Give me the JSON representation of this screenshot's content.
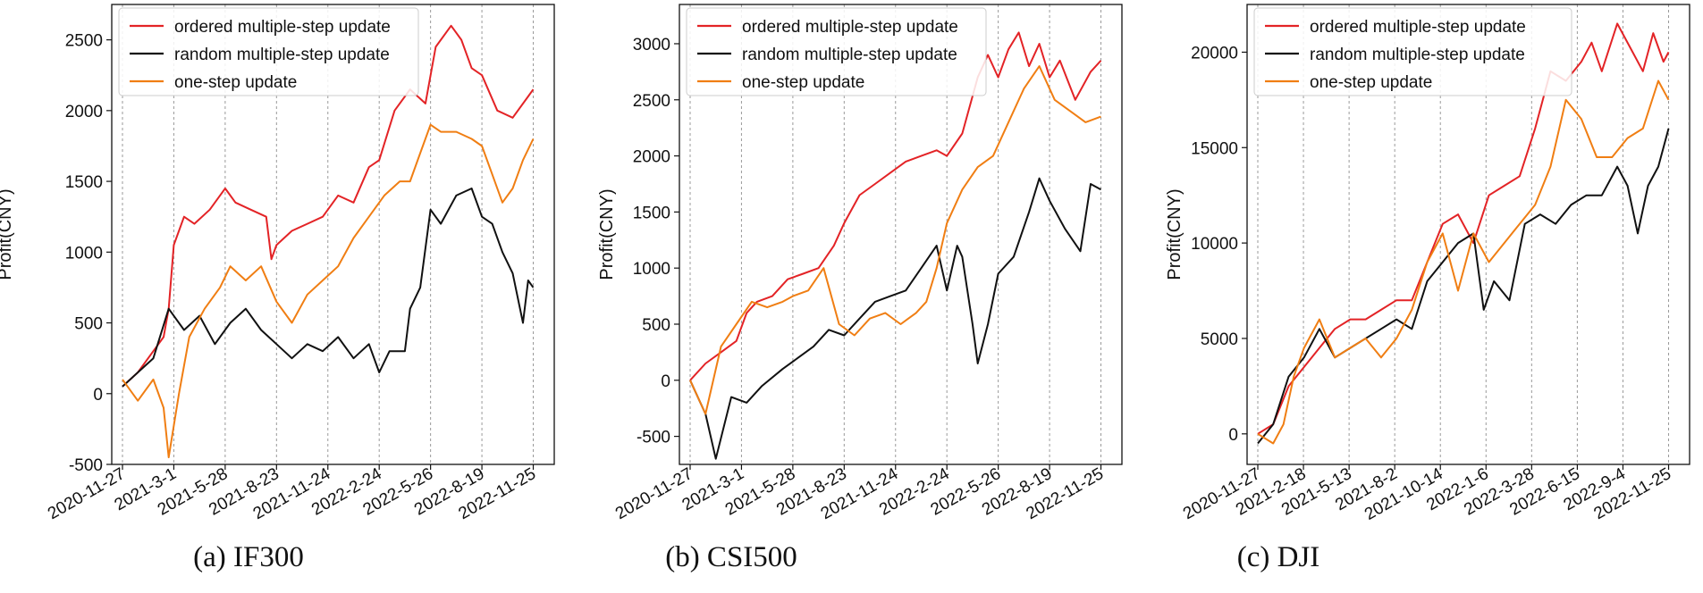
{
  "colors": {
    "ordered": "#e32326",
    "random": "#111111",
    "onestep": "#f07e13",
    "grid": "#9a9a9a"
  },
  "chart_data": [
    {
      "type": "line",
      "caption": "(a) IF300",
      "ylabel": "Profit(CNY)",
      "ylim": [
        -500,
        2750
      ],
      "yticks": [
        -500,
        0,
        500,
        1000,
        1500,
        2000,
        2500
      ],
      "xlim": [
        0,
        8.2
      ],
      "xtick_labels": [
        "2020-11-27",
        "2021-3-1",
        "2021-5-28",
        "2021-8-23",
        "2021-11-24",
        "2022-2-24",
        "2022-5-26",
        "2022-8-19",
        "2022-11-25"
      ],
      "grid": "vertical dashed at x ticks",
      "legend_position": "upper-left",
      "series": [
        {
          "name": "ordered multiple-step update",
          "color_key": "ordered",
          "x": [
            0,
            0.3,
            0.6,
            0.8,
            0.9,
            1.0,
            1.2,
            1.4,
            1.7,
            1.9,
            2.0,
            2.2,
            2.5,
            2.8,
            2.9,
            3.0,
            3.3,
            3.6,
            3.9,
            4.2,
            4.5,
            4.8,
            5.0,
            5.3,
            5.6,
            5.9,
            6.1,
            6.4,
            6.6,
            6.8,
            7.0,
            7.3,
            7.6,
            7.9,
            8.0
          ],
          "y": [
            50,
            150,
            300,
            400,
            600,
            1050,
            1250,
            1200,
            1300,
            1400,
            1450,
            1350,
            1300,
            1250,
            950,
            1050,
            1150,
            1200,
            1250,
            1400,
            1350,
            1600,
            1650,
            2000,
            2150,
            2050,
            2450,
            2600,
            2500,
            2300,
            2250,
            2000,
            1950,
            2100,
            2150
          ]
        },
        {
          "name": "random multiple-step update",
          "color_key": "random",
          "x": [
            0,
            0.3,
            0.6,
            0.9,
            1.2,
            1.5,
            1.8,
            2.1,
            2.4,
            2.7,
            3.0,
            3.3,
            3.6,
            3.9,
            4.2,
            4.5,
            4.8,
            5.0,
            5.2,
            5.5,
            5.6,
            5.8,
            6.0,
            6.2,
            6.5,
            6.8,
            7.0,
            7.2,
            7.4,
            7.6,
            7.8,
            7.9,
            8.0
          ],
          "y": [
            50,
            150,
            250,
            600,
            450,
            550,
            350,
            500,
            600,
            450,
            350,
            250,
            350,
            300,
            400,
            250,
            350,
            150,
            300,
            300,
            600,
            750,
            1300,
            1200,
            1400,
            1450,
            1250,
            1200,
            1000,
            850,
            500,
            800,
            750
          ]
        },
        {
          "name": "one-step update",
          "color_key": "onestep",
          "x": [
            0,
            0.3,
            0.6,
            0.8,
            0.9,
            1.1,
            1.3,
            1.6,
            1.9,
            2.1,
            2.4,
            2.7,
            3.0,
            3.3,
            3.6,
            3.9,
            4.2,
            4.5,
            4.8,
            5.1,
            5.4,
            5.6,
            5.8,
            6.0,
            6.2,
            6.5,
            6.8,
            7.0,
            7.2,
            7.4,
            7.6,
            7.8,
            8.0
          ],
          "y": [
            100,
            -50,
            100,
            -100,
            -450,
            0,
            400,
            600,
            750,
            900,
            800,
            900,
            650,
            500,
            700,
            800,
            900,
            1100,
            1250,
            1400,
            1500,
            1500,
            1700,
            1900,
            1850,
            1850,
            1800,
            1750,
            1550,
            1350,
            1450,
            1650,
            1800
          ]
        }
      ]
    },
    {
      "type": "line",
      "caption": "(b) CSI500",
      "ylabel": "Profit(CNY)",
      "ylim": [
        -750,
        3350
      ],
      "yticks": [
        -500,
        0,
        500,
        1000,
        1500,
        2000,
        2500,
        3000
      ],
      "xlim": [
        0,
        8.2
      ],
      "xtick_labels": [
        "2020-11-27",
        "2021-3-1",
        "2021-5-28",
        "2021-8-23",
        "2021-11-24",
        "2022-2-24",
        "2022-5-26",
        "2022-8-19",
        "2022-11-25"
      ],
      "grid": "vertical dashed at x ticks",
      "legend_position": "upper-left",
      "series": [
        {
          "name": "ordered multiple-step update",
          "color_key": "ordered",
          "x": [
            0,
            0.3,
            0.6,
            0.9,
            1.1,
            1.3,
            1.6,
            1.9,
            2.2,
            2.5,
            2.8,
            3.0,
            3.3,
            3.6,
            3.9,
            4.2,
            4.5,
            4.8,
            5.0,
            5.3,
            5.6,
            5.8,
            6.0,
            6.2,
            6.4,
            6.6,
            6.8,
            7.0,
            7.2,
            7.5,
            7.8,
            8.0
          ],
          "y": [
            0,
            150,
            250,
            350,
            600,
            700,
            750,
            900,
            950,
            1000,
            1200,
            1400,
            1650,
            1750,
            1850,
            1950,
            2000,
            2050,
            2000,
            2200,
            2700,
            2900,
            2700,
            2950,
            3100,
            2800,
            3000,
            2700,
            2850,
            2500,
            2750,
            2850
          ]
        },
        {
          "name": "random multiple-step update",
          "color_key": "random",
          "x": [
            0,
            0.3,
            0.5,
            0.8,
            1.1,
            1.4,
            1.8,
            2.1,
            2.4,
            2.7,
            3.0,
            3.3,
            3.6,
            3.9,
            4.2,
            4.5,
            4.8,
            5.0,
            5.2,
            5.3,
            5.5,
            5.6,
            5.8,
            6.0,
            6.3,
            6.6,
            6.8,
            7.0,
            7.3,
            7.6,
            7.8,
            8.0
          ],
          "y": [
            0,
            -300,
            -700,
            -150,
            -200,
            -50,
            100,
            200,
            300,
            450,
            400,
            550,
            700,
            750,
            800,
            1000,
            1200,
            800,
            1200,
            1100,
            500,
            150,
            500,
            950,
            1100,
            1500,
            1800,
            1600,
            1350,
            1150,
            1750,
            1700
          ]
        },
        {
          "name": "one-step update",
          "color_key": "onestep",
          "x": [
            0,
            0.3,
            0.6,
            0.9,
            1.2,
            1.5,
            1.8,
            2.0,
            2.3,
            2.6,
            2.9,
            3.2,
            3.5,
            3.8,
            4.1,
            4.4,
            4.6,
            4.8,
            5.0,
            5.3,
            5.6,
            5.9,
            6.2,
            6.5,
            6.8,
            7.1,
            7.4,
            7.7,
            8.0
          ],
          "y": [
            0,
            -300,
            300,
            500,
            700,
            650,
            700,
            750,
            800,
            1000,
            500,
            400,
            550,
            600,
            500,
            600,
            700,
            1000,
            1400,
            1700,
            1900,
            2000,
            2300,
            2600,
            2800,
            2500,
            2400,
            2300,
            2350
          ]
        }
      ]
    },
    {
      "type": "line",
      "caption": "(c) DJI",
      "ylabel": "Profit(CNY)",
      "ylim": [
        -1600,
        22500
      ],
      "yticks": [
        0,
        5000,
        10000,
        15000,
        20000
      ],
      "xlim": [
        0,
        8.2
      ],
      "xtick_labels": [
        "2020-11-27",
        "2021-2-18",
        "2021-5-13",
        "2021-8-2",
        "2021-10-14",
        "2022-1-6",
        "2022-3-28",
        "2022-6-15",
        "2022-9-4",
        "2022-11-25"
      ],
      "grid": "vertical dashed at x ticks",
      "legend_position": "upper-left",
      "series": [
        {
          "name": "ordered multiple-step update",
          "color_key": "ordered",
          "x": [
            0,
            0.3,
            0.6,
            0.9,
            1.2,
            1.5,
            1.8,
            2.1,
            2.4,
            2.7,
            3.0,
            3.3,
            3.6,
            3.9,
            4.2,
            4.5,
            4.8,
            5.1,
            5.4,
            5.7,
            6.0,
            6.3,
            6.5,
            6.7,
            7.0,
            7.3,
            7.5,
            7.7,
            7.9,
            8.0
          ],
          "y": [
            0,
            500,
            2500,
            3500,
            4500,
            5500,
            6000,
            6000,
            6500,
            7000,
            7000,
            9000,
            11000,
            11500,
            10000,
            12500,
            13000,
            13500,
            16000,
            19000,
            18500,
            19500,
            20500,
            19000,
            21500,
            20000,
            19000,
            21000,
            19500,
            20000
          ]
        },
        {
          "name": "random multiple-step update",
          "color_key": "random",
          "x": [
            0,
            0.3,
            0.6,
            0.9,
            1.2,
            1.5,
            1.8,
            2.1,
            2.4,
            2.7,
            3.0,
            3.3,
            3.6,
            3.9,
            4.2,
            4.4,
            4.6,
            4.9,
            5.2,
            5.5,
            5.8,
            6.1,
            6.4,
            6.7,
            7.0,
            7.2,
            7.4,
            7.6,
            7.8,
            8.0
          ],
          "y": [
            -500,
            500,
            3000,
            4000,
            5500,
            4000,
            4500,
            5000,
            5500,
            6000,
            5500,
            8000,
            9000,
            10000,
            10500,
            6500,
            8000,
            7000,
            11000,
            11500,
            11000,
            12000,
            12500,
            12500,
            14000,
            13000,
            10500,
            13000,
            14000,
            16000
          ]
        },
        {
          "name": "one-step update",
          "color_key": "onestep",
          "x": [
            0,
            0.3,
            0.5,
            0.7,
            0.9,
            1.2,
            1.5,
            1.8,
            2.1,
            2.4,
            2.7,
            3.0,
            3.3,
            3.6,
            3.9,
            4.2,
            4.5,
            4.8,
            5.1,
            5.4,
            5.7,
            6.0,
            6.3,
            6.6,
            6.9,
            7.2,
            7.5,
            7.8,
            8.0
          ],
          "y": [
            0,
            -500,
            500,
            3000,
            4500,
            6000,
            4000,
            4500,
            5000,
            4000,
            5000,
            6500,
            9000,
            10500,
            7500,
            10500,
            9000,
            10000,
            11000,
            12000,
            14000,
            17500,
            16500,
            14500,
            14500,
            15500,
            16000,
            18500,
            17500
          ]
        }
      ]
    }
  ]
}
